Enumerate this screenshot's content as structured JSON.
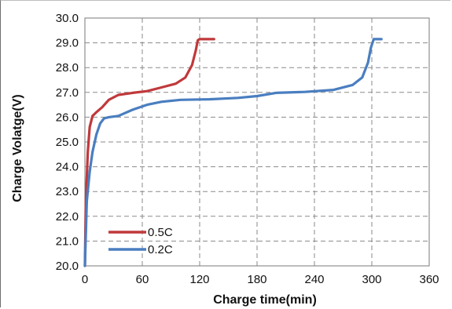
{
  "chart_data": {
    "type": "line",
    "title": "",
    "xlabel": "Charge time(min)",
    "ylabel": "Charge Volatge(V)",
    "xlim": [
      0,
      360
    ],
    "ylim": [
      20.0,
      30.0
    ],
    "x_ticks": [
      "0",
      "60",
      "120",
      "180",
      "240",
      "300",
      "360"
    ],
    "y_ticks": [
      "20.0",
      "21.0",
      "22.0",
      "23.0",
      "24.0",
      "25.0",
      "26.0",
      "27.0",
      "28.0",
      "29.0",
      "30.0"
    ],
    "grid": true,
    "legend_position": "bottom-left",
    "series": [
      {
        "name": "0.5C",
        "color": "#c0393b",
        "x": [
          0,
          1,
          3,
          5,
          8,
          12,
          18,
          25,
          35,
          50,
          65,
          80,
          95,
          105,
          112,
          116,
          118,
          120,
          135
        ],
        "y": [
          20.0,
          22.6,
          24.6,
          25.6,
          26.05,
          26.2,
          26.4,
          26.7,
          26.9,
          26.98,
          27.05,
          27.2,
          27.35,
          27.6,
          28.1,
          28.7,
          29.1,
          29.15,
          29.15
        ]
      },
      {
        "name": "0.2C",
        "color": "#4a7ec0",
        "x": [
          0,
          2,
          5,
          8,
          12,
          16,
          20,
          25,
          35,
          50,
          65,
          80,
          100,
          130,
          160,
          180,
          200,
          230,
          260,
          280,
          290,
          296,
          299,
          302,
          310
        ],
        "y": [
          20.0,
          22.6,
          23.8,
          24.6,
          25.3,
          25.75,
          25.95,
          26.0,
          26.05,
          26.3,
          26.5,
          26.62,
          26.7,
          26.72,
          26.78,
          26.85,
          26.98,
          27.02,
          27.1,
          27.3,
          27.6,
          28.2,
          28.8,
          29.15,
          29.15
        ]
      }
    ]
  }
}
